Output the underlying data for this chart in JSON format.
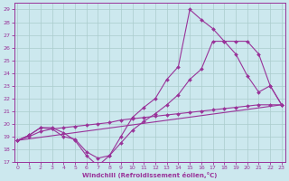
{
  "xlabel": "Windchill (Refroidissement éolien,°C)",
  "bg_color": "#cce8ee",
  "line_color": "#993399",
  "grid_color": "#aacccc",
  "xlim": [
    -0.3,
    23.3
  ],
  "ylim": [
    17,
    29.5
  ],
  "xticks": [
    0,
    1,
    2,
    3,
    4,
    5,
    6,
    7,
    8,
    9,
    10,
    11,
    12,
    13,
    14,
    15,
    16,
    17,
    18,
    19,
    20,
    21,
    22,
    23
  ],
  "yticks": [
    17,
    18,
    19,
    20,
    21,
    22,
    23,
    24,
    25,
    26,
    27,
    28,
    29
  ],
  "line1_x": [
    0,
    1,
    2,
    3,
    4,
    5,
    6,
    7,
    8,
    9,
    10,
    11,
    12,
    13,
    14,
    15,
    16,
    17,
    18,
    19,
    20,
    21,
    22,
    23
  ],
  "line1_y": [
    18.7,
    19.1,
    19.7,
    19.7,
    19.3,
    18.7,
    17.5,
    16.7,
    17.5,
    19.0,
    20.5,
    21.3,
    22.0,
    23.5,
    24.5,
    29.0,
    28.2,
    27.5,
    26.5,
    25.5,
    23.8,
    22.5,
    23.0,
    21.5
  ],
  "line2_x": [
    0,
    23
  ],
  "line2_y": [
    18.7,
    21.5
  ],
  "line3_x": [
    0,
    1,
    2,
    3,
    4,
    5,
    6,
    7,
    8,
    9,
    10,
    11,
    12,
    13,
    14,
    15,
    16,
    17,
    18,
    19,
    20,
    21,
    22,
    23
  ],
  "line3_y": [
    18.7,
    19.1,
    19.7,
    19.6,
    19.0,
    18.8,
    17.8,
    17.3,
    17.5,
    18.5,
    19.5,
    20.2,
    20.8,
    21.5,
    22.3,
    23.5,
    24.3,
    26.5,
    26.5,
    26.5,
    26.5,
    25.5,
    23.0,
    21.5
  ],
  "line4_x": [
    0,
    1,
    2,
    3,
    4,
    5,
    6,
    7,
    8,
    9,
    10,
    11,
    12,
    13,
    14,
    15,
    16,
    17,
    18,
    19,
    20,
    21,
    22,
    23
  ],
  "line4_y": [
    18.7,
    19.0,
    19.4,
    19.6,
    19.7,
    19.8,
    19.9,
    20.0,
    20.1,
    20.3,
    20.4,
    20.5,
    20.6,
    20.7,
    20.8,
    20.9,
    21.0,
    21.1,
    21.2,
    21.3,
    21.4,
    21.5,
    21.5,
    21.5
  ]
}
